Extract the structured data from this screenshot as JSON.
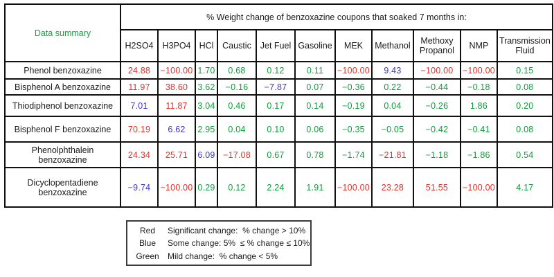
{
  "colors": {
    "red": "#e23127",
    "blue": "#3a34cb",
    "green": "#0f9b3a",
    "header_green": "#18a23e"
  },
  "chart_data": {
    "type": "table",
    "title": "% Weight change of benzoxazine coupons that soaked 7 months in:",
    "corner_label": "Data summary",
    "columns": [
      "H2SO4",
      "H3PO4",
      "HCl",
      "Caustic",
      "Jet Fuel",
      "Gasoline",
      "MEK",
      "Methanol",
      "Methoxy Propanol",
      "NMP",
      "Transmission Fluid"
    ],
    "rows": [
      {
        "name": "Phenol benzoxazine",
        "values": [
          24.88,
          -100.0,
          1.7,
          0.68,
          0.12,
          0.11,
          -100.0,
          9.43,
          -100.0,
          -100.0,
          0.15
        ]
      },
      {
        "name": "Bisphenol A benzoxazine",
        "values": [
          11.97,
          38.6,
          3.62,
          -0.16,
          -7.87,
          0.07,
          -0.36,
          0.22,
          -0.44,
          -0.18,
          0.08
        ]
      },
      {
        "name": "Thiodiphenol benzoxazine",
        "values": [
          7.01,
          11.87,
          3.04,
          0.46,
          0.17,
          0.14,
          -0.19,
          0.04,
          -0.26,
          1.86,
          0.2
        ]
      },
      {
        "name": "Bisphenol F benzoxazine",
        "values": [
          70.19,
          6.62,
          2.95,
          0.04,
          0.1,
          0.06,
          -0.35,
          -0.05,
          -0.42,
          -0.41,
          0.08
        ]
      },
      {
        "name": "Phenolphthalein benzoxazine",
        "values": [
          24.34,
          25.71,
          6.09,
          -17.08,
          0.67,
          0.78,
          -1.74,
          -21.81,
          -1.18,
          -1.86,
          0.54
        ]
      },
      {
        "name": "Dicyclopentadiene benzoxazine",
        "values": [
          -9.74,
          -100.0,
          0.29,
          0.12,
          2.24,
          1.91,
          -100.0,
          23.28,
          51.55,
          -100.0,
          4.17
        ]
      }
    ],
    "color_rule": {
      "red_if_abs_gt": 10,
      "blue_if_abs_between": [
        5,
        10
      ],
      "green_if_abs_lt": 5
    },
    "legend": [
      {
        "label": "Red",
        "text": "Significant change:  % change > 10%"
      },
      {
        "label": "Blue",
        "text": "Some change: 5%  ≤ % change ≤ 10%"
      },
      {
        "label": "Green",
        "text": "Mild change:  % change < 5%"
      }
    ]
  }
}
